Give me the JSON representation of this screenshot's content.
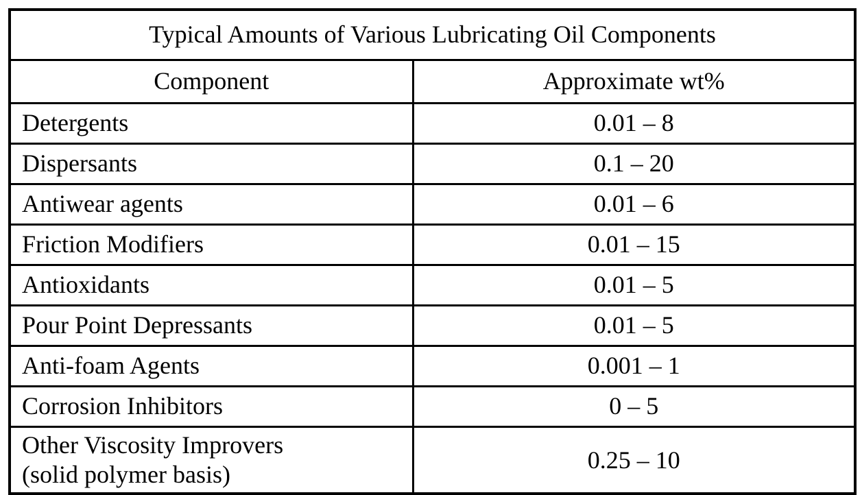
{
  "table": {
    "title": "Typical Amounts of Various Lubricating Oil Components",
    "columns": [
      "Component",
      "Approximate wt%"
    ],
    "rows": [
      {
        "component": "Detergents",
        "wt": "0.01 – 8"
      },
      {
        "component": "Dispersants",
        "wt": "0.1 – 20"
      },
      {
        "component": "Antiwear agents",
        "wt": "0.01 – 6"
      },
      {
        "component": "Friction Modifiers",
        "wt": "0.01 – 15"
      },
      {
        "component": "Antioxidants",
        "wt": "0.01 – 5"
      },
      {
        "component": "Pour Point Depressants",
        "wt": "0.01 – 5"
      },
      {
        "component": "Anti-foam Agents",
        "wt": "0.001 – 1"
      },
      {
        "component": "Corrosion Inhibitors",
        "wt": "0 – 5"
      },
      {
        "component": "Other Viscosity Improvers\n(solid polymer basis)",
        "wt": "0.25 – 10"
      }
    ],
    "border_color": "#000000",
    "background_color": "#ffffff"
  }
}
